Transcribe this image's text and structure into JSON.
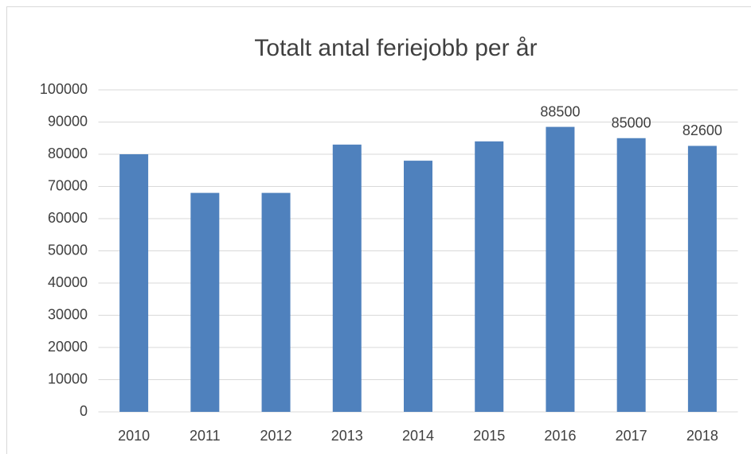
{
  "chart_data": {
    "type": "bar",
    "title": "Totalt antal feriejobb per år",
    "categories": [
      "2010",
      "2011",
      "2012",
      "2013",
      "2014",
      "2015",
      "2016",
      "2017",
      "2018"
    ],
    "values": [
      80000,
      68000,
      68000,
      83000,
      78000,
      84000,
      88500,
      85000,
      82600
    ],
    "value_labels": [
      null,
      null,
      null,
      null,
      null,
      null,
      "88500",
      "85000",
      "82600"
    ],
    "color": "#4f81bd",
    "ylim": [
      0,
      100000
    ],
    "yticks": [
      0,
      10000,
      20000,
      30000,
      40000,
      50000,
      60000,
      70000,
      80000,
      90000,
      100000
    ],
    "grid": true
  }
}
